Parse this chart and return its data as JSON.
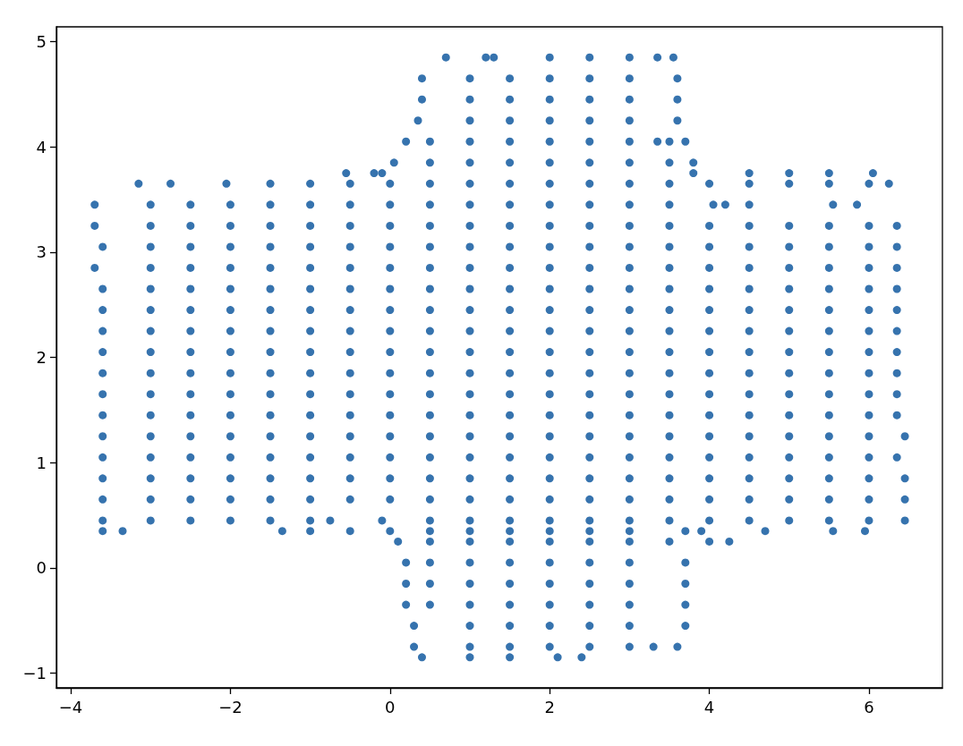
{
  "chart_data": {
    "type": "scatter",
    "color": "#3673ae",
    "marker": "circle",
    "xlim": [
      -4.18,
      6.92
    ],
    "ylim": [
      -1.14,
      5.14
    ],
    "xticks": [
      -4,
      -2,
      0,
      2,
      4,
      6
    ],
    "yticks": [
      -1,
      0,
      1,
      2,
      3,
      4,
      5
    ],
    "x": [
      0.7,
      1.2,
      1.3,
      2,
      2.5,
      3,
      3.35,
      3.55,
      0.4,
      1,
      1.5,
      2,
      2.5,
      3,
      3.6,
      0.4,
      1,
      1.5,
      2,
      2.5,
      3,
      3.6,
      0.35,
      1,
      1.5,
      2,
      2.5,
      3,
      3.6,
      0.2,
      0.5,
      1,
      1.5,
      2,
      2.5,
      3,
      3.35,
      3.5,
      3.7,
      0.05,
      0.5,
      1,
      1.5,
      2,
      2.5,
      3,
      3.5,
      3.8,
      -0.55,
      -0.2,
      -0.1,
      3.8,
      4.5,
      5,
      5.5,
      6.05,
      -3.15,
      -2.75,
      -2.05,
      -1.5,
      -1,
      -0.5,
      0,
      0.5,
      1,
      1.5,
      2,
      2.5,
      3,
      3.5,
      4,
      4.5,
      5,
      5.5,
      6,
      6.25,
      -3.7,
      -3,
      -2.5,
      -2,
      -1.5,
      -1,
      -0.5,
      0,
      0.5,
      1,
      1.5,
      2,
      2.5,
      3,
      3.5,
      4.05,
      4.2,
      4.5,
      5.55,
      5.85,
      -3.7,
      -3,
      -2.5,
      -2,
      -1.5,
      -1,
      -0.5,
      0,
      0.5,
      1,
      1.5,
      2,
      2.5,
      3,
      3.5,
      4,
      4.5,
      5,
      5.5,
      6,
      6.35,
      -3.6,
      -3,
      -2.5,
      -2,
      -1.5,
      -1,
      -0.5,
      0,
      0.5,
      1,
      1.5,
      2,
      2.5,
      3,
      3.5,
      4,
      4.5,
      5,
      5.5,
      6,
      6.35,
      -3.7,
      -3,
      -2.5,
      -2,
      -1.5,
      -1,
      -0.5,
      0,
      0.5,
      1,
      1.5,
      2,
      2.5,
      3,
      3.5,
      4,
      4.5,
      5,
      5.5,
      6,
      6.35,
      -3.6,
      -3,
      -2.5,
      -2,
      -1.5,
      -1,
      -0.5,
      0,
      0.5,
      1,
      1.5,
      2,
      2.5,
      3,
      3.5,
      4,
      4.5,
      5,
      5.5,
      6,
      6.35,
      -3.6,
      -3,
      -2.5,
      -2,
      -1.5,
      -1,
      -0.5,
      0,
      0.5,
      1,
      1.5,
      2,
      2.5,
      3,
      3.5,
      4,
      4.5,
      5,
      5.5,
      6,
      6.35,
      -3.6,
      -3,
      -2.5,
      -2,
      -1.5,
      -1,
      -0.5,
      0,
      0.5,
      1,
      1.5,
      2,
      2.5,
      3,
      3.5,
      4,
      4.5,
      5,
      5.5,
      6,
      6.35,
      -3.6,
      -3,
      -2.5,
      -2,
      -1.5,
      -1,
      -0.5,
      0,
      0.5,
      1,
      1.5,
      2,
      2.5,
      3,
      3.5,
      4,
      4.5,
      5,
      5.5,
      6,
      6.35,
      -3.6,
      -3,
      -2.5,
      -2,
      -1.5,
      -1,
      -0.5,
      0,
      0.5,
      1,
      1.5,
      2,
      2.5,
      3,
      3.5,
      4,
      4.5,
      5,
      5.5,
      6,
      6.35,
      -3.6,
      -3,
      -2.5,
      -2,
      -1.5,
      -1,
      -0.5,
      0,
      0.5,
      1,
      1.5,
      2,
      2.5,
      3,
      3.5,
      4,
      4.5,
      5,
      5.5,
      6,
      6.35,
      -3.6,
      -3,
      -2.5,
      -2,
      -1.5,
      -1,
      -0.5,
      0,
      0.5,
      1,
      1.5,
      2,
      2.5,
      3,
      3.5,
      4,
      4.5,
      5,
      5.5,
      6,
      6.35,
      -3.6,
      -3,
      -2.5,
      -2,
      -1.5,
      -1,
      -0.5,
      0,
      0.5,
      1,
      1.5,
      2,
      2.5,
      3,
      3.5,
      4,
      4.5,
      5,
      5.5,
      6,
      6.45,
      -3.6,
      -3,
      -2.5,
      -2,
      -1.5,
      -1,
      -0.5,
      0,
      0.5,
      1,
      1.5,
      2,
      2.5,
      3,
      3.5,
      4,
      4.5,
      5,
      5.5,
      6,
      6.35,
      -3.6,
      -3,
      -2.5,
      -2,
      -1.5,
      -1,
      -0.5,
      0,
      0.5,
      1,
      1.5,
      2,
      2.5,
      3,
      3.5,
      4,
      4.5,
      5,
      5.5,
      6,
      6.45,
      -3.6,
      -3,
      -2.5,
      -2,
      -1.5,
      -1,
      -0.5,
      0,
      0.5,
      1,
      1.5,
      2,
      2.5,
      3,
      3.5,
      4,
      4.5,
      5,
      5.5,
      6,
      6.45,
      -3.6,
      -3,
      -2.5,
      -2,
      -1.5,
      -1,
      -0.75,
      -0.1,
      0.5,
      1,
      1.5,
      2,
      2.5,
      3,
      3.5,
      4,
      4.5,
      5,
      5.5,
      6,
      6.45,
      -3.6,
      -3.35,
      -1.35,
      -1,
      -0.5,
      0,
      0.5,
      1,
      1.5,
      2,
      2.5,
      3,
      3.7,
      3.9,
      4.7,
      5.55,
      5.95,
      0.1,
      0.5,
      1,
      1.5,
      2,
      2.5,
      3,
      3.5,
      4,
      4.25,
      0.2,
      0.5,
      1,
      1.5,
      2,
      2.5,
      3,
      3.7,
      0.2,
      0.5,
      1,
      1.5,
      2,
      2.5,
      3,
      3.7,
      0.2,
      0.5,
      1,
      1.5,
      2,
      2.5,
      3,
      3.7,
      0.3,
      1,
      1.5,
      2,
      2.5,
      3,
      3.7,
      0.3,
      1,
      1.5,
      2,
      2.5,
      3,
      3.3,
      3.6,
      0.4,
      1,
      1.5,
      2.1,
      2.4
    ],
    "values": [
      4.85,
      4.85,
      4.85,
      4.85,
      4.85,
      4.85,
      4.85,
      4.85,
      4.65,
      4.65,
      4.65,
      4.65,
      4.65,
      4.65,
      4.65,
      4.45,
      4.45,
      4.45,
      4.45,
      4.45,
      4.45,
      4.45,
      4.25,
      4.25,
      4.25,
      4.25,
      4.25,
      4.25,
      4.25,
      4.05,
      4.05,
      4.05,
      4.05,
      4.05,
      4.05,
      4.05,
      4.05,
      4.05,
      4.05,
      3.85,
      3.85,
      3.85,
      3.85,
      3.85,
      3.85,
      3.85,
      3.85,
      3.85,
      3.75,
      3.75,
      3.75,
      3.75,
      3.75,
      3.75,
      3.75,
      3.75,
      3.65,
      3.65,
      3.65,
      3.65,
      3.65,
      3.65,
      3.65,
      3.65,
      3.65,
      3.65,
      3.65,
      3.65,
      3.65,
      3.65,
      3.65,
      3.65,
      3.65,
      3.65,
      3.65,
      3.65,
      3.45,
      3.45,
      3.45,
      3.45,
      3.45,
      3.45,
      3.45,
      3.45,
      3.45,
      3.45,
      3.45,
      3.45,
      3.45,
      3.45,
      3.45,
      3.45,
      3.45,
      3.45,
      3.45,
      3.45,
      3.25,
      3.25,
      3.25,
      3.25,
      3.25,
      3.25,
      3.25,
      3.25,
      3.25,
      3.25,
      3.25,
      3.25,
      3.25,
      3.25,
      3.25,
      3.25,
      3.25,
      3.25,
      3.25,
      3.25,
      3.25,
      3.05,
      3.05,
      3.05,
      3.05,
      3.05,
      3.05,
      3.05,
      3.05,
      3.05,
      3.05,
      3.05,
      3.05,
      3.05,
      3.05,
      3.05,
      3.05,
      3.05,
      3.05,
      3.05,
      3.05,
      3.05,
      2.85,
      2.85,
      2.85,
      2.85,
      2.85,
      2.85,
      2.85,
      2.85,
      2.85,
      2.85,
      2.85,
      2.85,
      2.85,
      2.85,
      2.85,
      2.85,
      2.85,
      2.85,
      2.85,
      2.85,
      2.85,
      2.65,
      2.65,
      2.65,
      2.65,
      2.65,
      2.65,
      2.65,
      2.65,
      2.65,
      2.65,
      2.65,
      2.65,
      2.65,
      2.65,
      2.65,
      2.65,
      2.65,
      2.65,
      2.65,
      2.65,
      2.65,
      2.45,
      2.45,
      2.45,
      2.45,
      2.45,
      2.45,
      2.45,
      2.45,
      2.45,
      2.45,
      2.45,
      2.45,
      2.45,
      2.45,
      2.45,
      2.45,
      2.45,
      2.45,
      2.45,
      2.45,
      2.45,
      2.25,
      2.25,
      2.25,
      2.25,
      2.25,
      2.25,
      2.25,
      2.25,
      2.25,
      2.25,
      2.25,
      2.25,
      2.25,
      2.25,
      2.25,
      2.25,
      2.25,
      2.25,
      2.25,
      2.25,
      2.25,
      2.05,
      2.05,
      2.05,
      2.05,
      2.05,
      2.05,
      2.05,
      2.05,
      2.05,
      2.05,
      2.05,
      2.05,
      2.05,
      2.05,
      2.05,
      2.05,
      2.05,
      2.05,
      2.05,
      2.05,
      2.05,
      1.85,
      1.85,
      1.85,
      1.85,
      1.85,
      1.85,
      1.85,
      1.85,
      1.85,
      1.85,
      1.85,
      1.85,
      1.85,
      1.85,
      1.85,
      1.85,
      1.85,
      1.85,
      1.85,
      1.85,
      1.85,
      1.65,
      1.65,
      1.65,
      1.65,
      1.65,
      1.65,
      1.65,
      1.65,
      1.65,
      1.65,
      1.65,
      1.65,
      1.65,
      1.65,
      1.65,
      1.65,
      1.65,
      1.65,
      1.65,
      1.65,
      1.65,
      1.45,
      1.45,
      1.45,
      1.45,
      1.45,
      1.45,
      1.45,
      1.45,
      1.45,
      1.45,
      1.45,
      1.45,
      1.45,
      1.45,
      1.45,
      1.45,
      1.45,
      1.45,
      1.45,
      1.45,
      1.45,
      1.25,
      1.25,
      1.25,
      1.25,
      1.25,
      1.25,
      1.25,
      1.25,
      1.25,
      1.25,
      1.25,
      1.25,
      1.25,
      1.25,
      1.25,
      1.25,
      1.25,
      1.25,
      1.25,
      1.25,
      1.25,
      1.05,
      1.05,
      1.05,
      1.05,
      1.05,
      1.05,
      1.05,
      1.05,
      1.05,
      1.05,
      1.05,
      1.05,
      1.05,
      1.05,
      1.05,
      1.05,
      1.05,
      1.05,
      1.05,
      1.05,
      1.05,
      0.85,
      0.85,
      0.85,
      0.85,
      0.85,
      0.85,
      0.85,
      0.85,
      0.85,
      0.85,
      0.85,
      0.85,
      0.85,
      0.85,
      0.85,
      0.85,
      0.85,
      0.85,
      0.85,
      0.85,
      0.85,
      0.65,
      0.65,
      0.65,
      0.65,
      0.65,
      0.65,
      0.65,
      0.65,
      0.65,
      0.65,
      0.65,
      0.65,
      0.65,
      0.65,
      0.65,
      0.65,
      0.65,
      0.65,
      0.65,
      0.65,
      0.65,
      0.45,
      0.45,
      0.45,
      0.45,
      0.45,
      0.45,
      0.45,
      0.45,
      0.45,
      0.45,
      0.45,
      0.45,
      0.45,
      0.45,
      0.45,
      0.45,
      0.45,
      0.45,
      0.45,
      0.45,
      0.45,
      0.35,
      0.35,
      0.35,
      0.35,
      0.35,
      0.35,
      0.35,
      0.35,
      0.35,
      0.35,
      0.35,
      0.35,
      0.35,
      0.35,
      0.35,
      0.35,
      0.35,
      0.25,
      0.25,
      0.25,
      0.25,
      0.25,
      0.25,
      0.25,
      0.25,
      0.25,
      0.25,
      0.05,
      0.05,
      0.05,
      0.05,
      0.05,
      0.05,
      0.05,
      0.05,
      -0.15,
      -0.15,
      -0.15,
      -0.15,
      -0.15,
      -0.15,
      -0.15,
      -0.15,
      -0.35,
      -0.35,
      -0.35,
      -0.35,
      -0.35,
      -0.35,
      -0.35,
      -0.35,
      -0.55,
      -0.55,
      -0.55,
      -0.55,
      -0.55,
      -0.55,
      -0.55,
      -0.75,
      -0.75,
      -0.75,
      -0.75,
      -0.75,
      -0.75,
      -0.75,
      -0.75,
      -0.85,
      -0.85,
      -0.85,
      -0.85,
      -0.85
    ]
  }
}
